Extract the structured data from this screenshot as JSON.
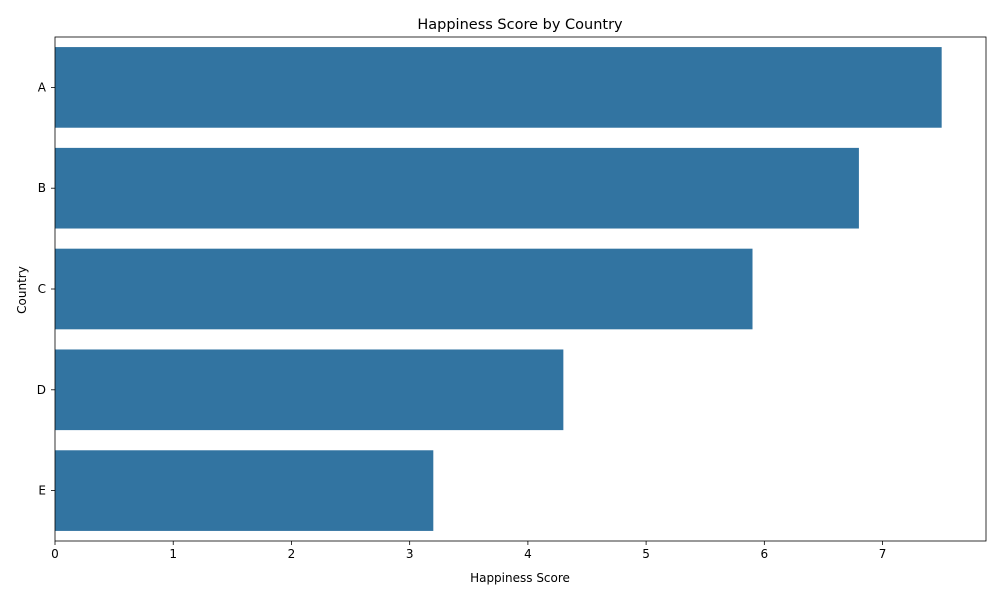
{
  "chart_data": {
    "type": "bar",
    "orientation": "horizontal",
    "title": "Happiness Score by Country",
    "xlabel": "Happiness Score",
    "ylabel": "Country",
    "categories": [
      "A",
      "B",
      "C",
      "D",
      "E"
    ],
    "values": [
      7.5,
      6.8,
      5.9,
      4.3,
      3.2
    ],
    "xlim": [
      0,
      7.875
    ],
    "xticks": [
      0,
      1,
      2,
      3,
      4,
      5,
      6,
      7
    ],
    "grid": false,
    "bar_color": "#3274a1"
  }
}
